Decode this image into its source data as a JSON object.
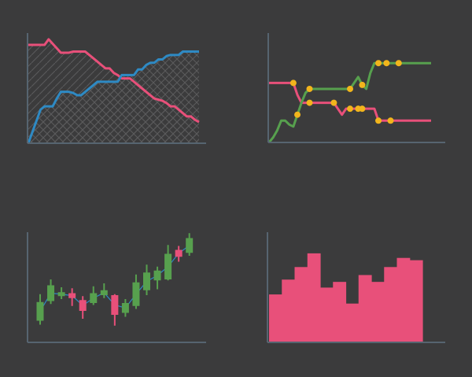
{
  "colors": {
    "background": "#3b3b3c",
    "axis": "#566470",
    "pink": "#e8507a",
    "blue": "#2e8ac4",
    "green": "#57a04e",
    "marker": "#f2b51c",
    "hatch": "#5b5b5c"
  },
  "chart_data": [
    {
      "type": "area",
      "position": "top-left",
      "x": [
        0,
        1,
        2,
        3,
        4,
        5,
        6,
        7,
        8,
        9,
        10,
        11,
        12,
        13,
        14,
        15,
        16,
        17,
        18,
        19,
        20,
        21,
        22,
        23,
        24,
        25,
        26,
        27,
        28,
        29,
        30,
        31,
        32,
        33,
        34,
        35,
        36,
        37,
        38,
        39,
        40,
        41,
        42
      ],
      "ylim": [
        0,
        100
      ],
      "series": [
        {
          "color": "pink",
          "fill": "diagonal-hatch",
          "values": [
            88,
            88,
            88,
            88,
            88,
            93,
            89,
            85,
            81,
            81,
            81,
            82,
            82,
            82,
            82,
            79,
            76,
            73,
            70,
            67,
            67,
            63,
            61,
            58,
            58,
            58,
            55,
            52,
            49,
            46,
            43,
            40,
            39,
            38,
            36,
            33,
            33,
            30,
            27,
            24,
            24,
            21,
            19
          ]
        },
        {
          "color": "blue",
          "fill": "cross-hatch",
          "values": [
            0,
            10,
            20,
            30,
            33,
            33,
            33,
            40,
            46,
            46,
            46,
            45,
            43,
            43,
            46,
            49,
            52,
            55,
            55,
            55,
            55,
            55,
            55,
            61,
            61,
            61,
            61,
            66,
            66,
            70,
            72,
            72,
            75,
            75,
            78,
            79,
            79,
            79,
            82,
            82,
            82,
            82,
            82
          ]
        }
      ]
    },
    {
      "type": "line",
      "position": "top-right",
      "x": [
        0,
        1,
        2,
        3,
        4,
        5,
        6,
        7,
        8,
        9,
        10,
        11,
        12,
        13,
        14,
        15,
        16,
        17,
        18,
        19,
        20,
        21,
        22,
        23,
        24,
        25,
        26,
        27,
        28,
        29,
        30,
        31,
        32,
        33,
        34,
        35,
        36,
        37,
        38,
        39,
        40
      ],
      "ylim": [
        0,
        100
      ],
      "series": [
        {
          "color": "pink",
          "marker_indices": [
            6,
            10,
            16,
            20,
            22,
            23,
            27,
            30
          ],
          "values": [
            60,
            60,
            60,
            60,
            60,
            60,
            60,
            48,
            40,
            40,
            40,
            40,
            40,
            40,
            40,
            40,
            40,
            34,
            28,
            34,
            34,
            34,
            34,
            34,
            34,
            34,
            34,
            22,
            22,
            22,
            22,
            22,
            22,
            22,
            22,
            22,
            22,
            22,
            22,
            22,
            22
          ]
        },
        {
          "color": "green",
          "marker_indices": [
            7,
            10,
            20,
            23,
            27,
            29,
            32
          ],
          "values": [
            0,
            5,
            12,
            22,
            22,
            18,
            16,
            28,
            40,
            50,
            54,
            54,
            54,
            54,
            54,
            54,
            54,
            54,
            54,
            54,
            54,
            60,
            66,
            58,
            54,
            70,
            80,
            80,
            80,
            80,
            80,
            80,
            80,
            80,
            80,
            80,
            80,
            80,
            80,
            80,
            80
          ]
        }
      ]
    },
    {
      "type": "candlestick",
      "position": "bottom-left",
      "ylim": [
        0,
        100
      ],
      "candles": [
        {
          "o": 10,
          "c": 29,
          "h": 37,
          "l": 6
        },
        {
          "o": 30,
          "c": 46,
          "h": 52,
          "l": 27
        },
        {
          "o": 35,
          "c": 39,
          "h": 44,
          "l": 32
        },
        {
          "o": 38,
          "c": 33,
          "h": 43,
          "l": 25
        },
        {
          "o": 31,
          "c": 20,
          "h": 35,
          "l": 12
        },
        {
          "o": 28,
          "c": 38,
          "h": 45,
          "l": 26
        },
        {
          "o": 36,
          "c": 41,
          "h": 48,
          "l": 33
        },
        {
          "o": 36,
          "c": 16,
          "h": 37,
          "l": 5
        },
        {
          "o": 18,
          "c": 28,
          "h": 32,
          "l": 14
        },
        {
          "o": 25,
          "c": 49,
          "h": 57,
          "l": 22
        },
        {
          "o": 41,
          "c": 59,
          "h": 67,
          "l": 36
        },
        {
          "o": 51,
          "c": 61,
          "h": 65,
          "l": 42
        },
        {
          "o": 52,
          "c": 78,
          "h": 87,
          "l": 51
        },
        {
          "o": 82,
          "c": 75,
          "h": 86,
          "l": 70
        },
        {
          "o": 79,
          "c": 94,
          "h": 99,
          "l": 76
        }
      ]
    },
    {
      "type": "step-area",
      "position": "bottom-right",
      "color": "pink",
      "ylim": [
        0,
        100
      ],
      "values": [
        42,
        55,
        66,
        78,
        48,
        53,
        34,
        59,
        53,
        66,
        74,
        72
      ]
    }
  ]
}
